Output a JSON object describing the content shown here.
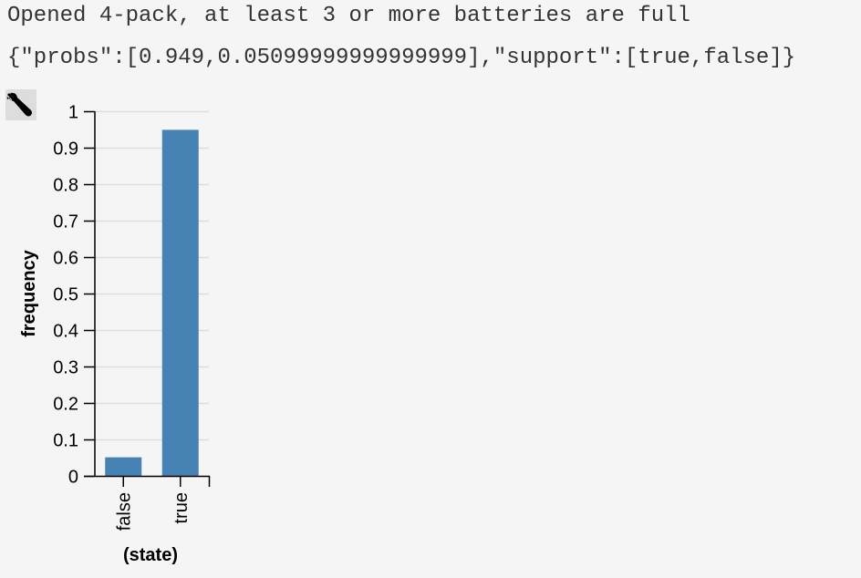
{
  "output": {
    "line1": "Opened 4-pack, at least 3 or more batteries are full",
    "line2": "{\"probs\":[0.949,0.05099999999999999],\"support\":[true,false]}"
  },
  "toolbar": {
    "icon": "wrench-icon"
  },
  "chart_data": {
    "type": "bar",
    "categories": [
      "false",
      "true"
    ],
    "values": [
      0.051,
      0.949
    ],
    "xlabel": "(state)",
    "ylabel": "frequency",
    "ylim": [
      0,
      1
    ],
    "yticks": [
      "0",
      "0.1",
      "0.2",
      "0.3",
      "0.4",
      "0.5",
      "0.6",
      "0.7",
      "0.8",
      "0.9",
      "1"
    ],
    "grid": true,
    "bar_color": "#4682b4",
    "grid_color": "#dddddd"
  }
}
